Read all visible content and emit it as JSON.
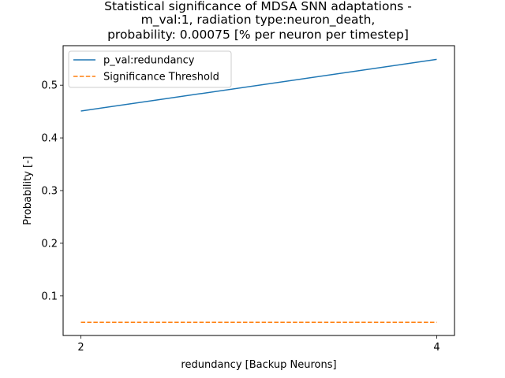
{
  "chart_data": {
    "type": "line",
    "title_lines": [
      "Statistical significance of MDSA SNN adaptations -",
      "m_val:1, radiation type:neuron_death,",
      "probability: 0.00075 [% per neuron per timestep]"
    ],
    "xlabel": "redundancy [Backup Neurons]",
    "ylabel": "Probability [-]",
    "x_ticks": [
      2,
      4
    ],
    "y_ticks": [
      0.1,
      0.2,
      0.3,
      0.4,
      0.5
    ],
    "xlim": [
      1.9,
      4.1
    ],
    "ylim": [
      0.025,
      0.575
    ],
    "grid": false,
    "legend_position": "upper-left",
    "series": [
      {
        "name": "p_val:redundancy",
        "x": [
          2,
          4
        ],
        "y": [
          0.451,
          0.549
        ],
        "color": "#1f77b4",
        "style": "solid"
      },
      {
        "name": "Significance Threshold",
        "x": [
          2,
          4
        ],
        "y": [
          0.05,
          0.05
        ],
        "color": "#ff7f0e",
        "style": "dashed"
      }
    ]
  }
}
